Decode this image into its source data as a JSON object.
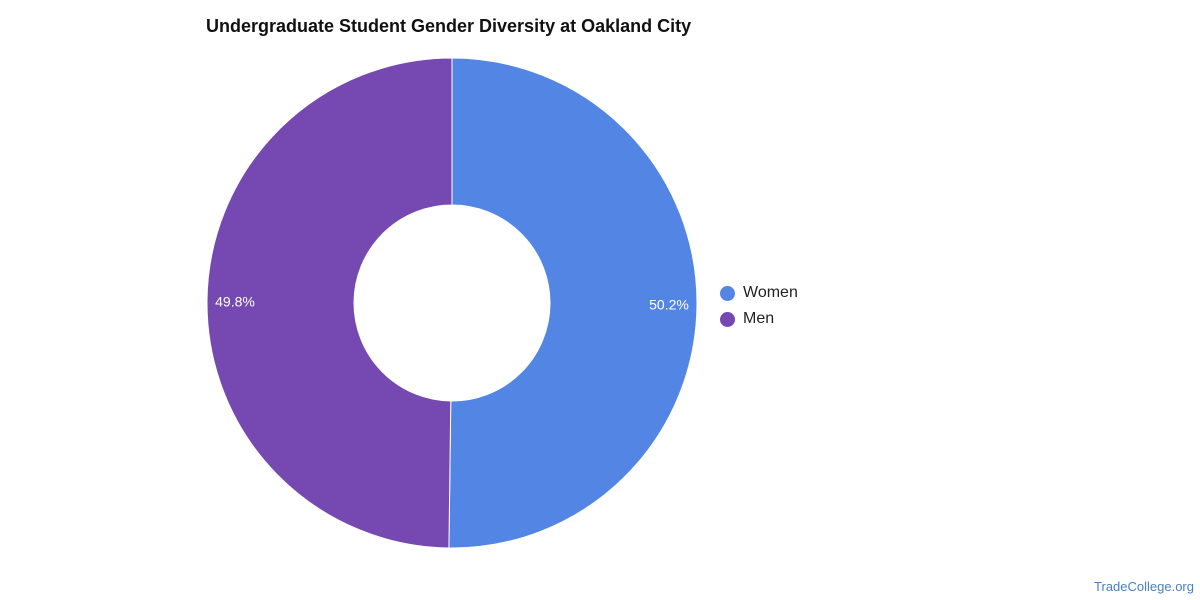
{
  "chart_data": {
    "type": "pie",
    "title": "Undergraduate Student Gender Diversity at Oakland City",
    "categories": [
      "Women",
      "Men"
    ],
    "values": [
      50.2,
      49.8
    ],
    "value_labels": [
      "50.2%",
      "49.8%"
    ],
    "colors": [
      "#5386E4",
      "#7549B1"
    ],
    "donut": true,
    "legend_position": "right"
  },
  "legend": {
    "items": [
      {
        "label": "Women",
        "color": "#5386E4"
      },
      {
        "label": "Men",
        "color": "#7549B1"
      }
    ]
  },
  "credit": "TradeCollege.org"
}
